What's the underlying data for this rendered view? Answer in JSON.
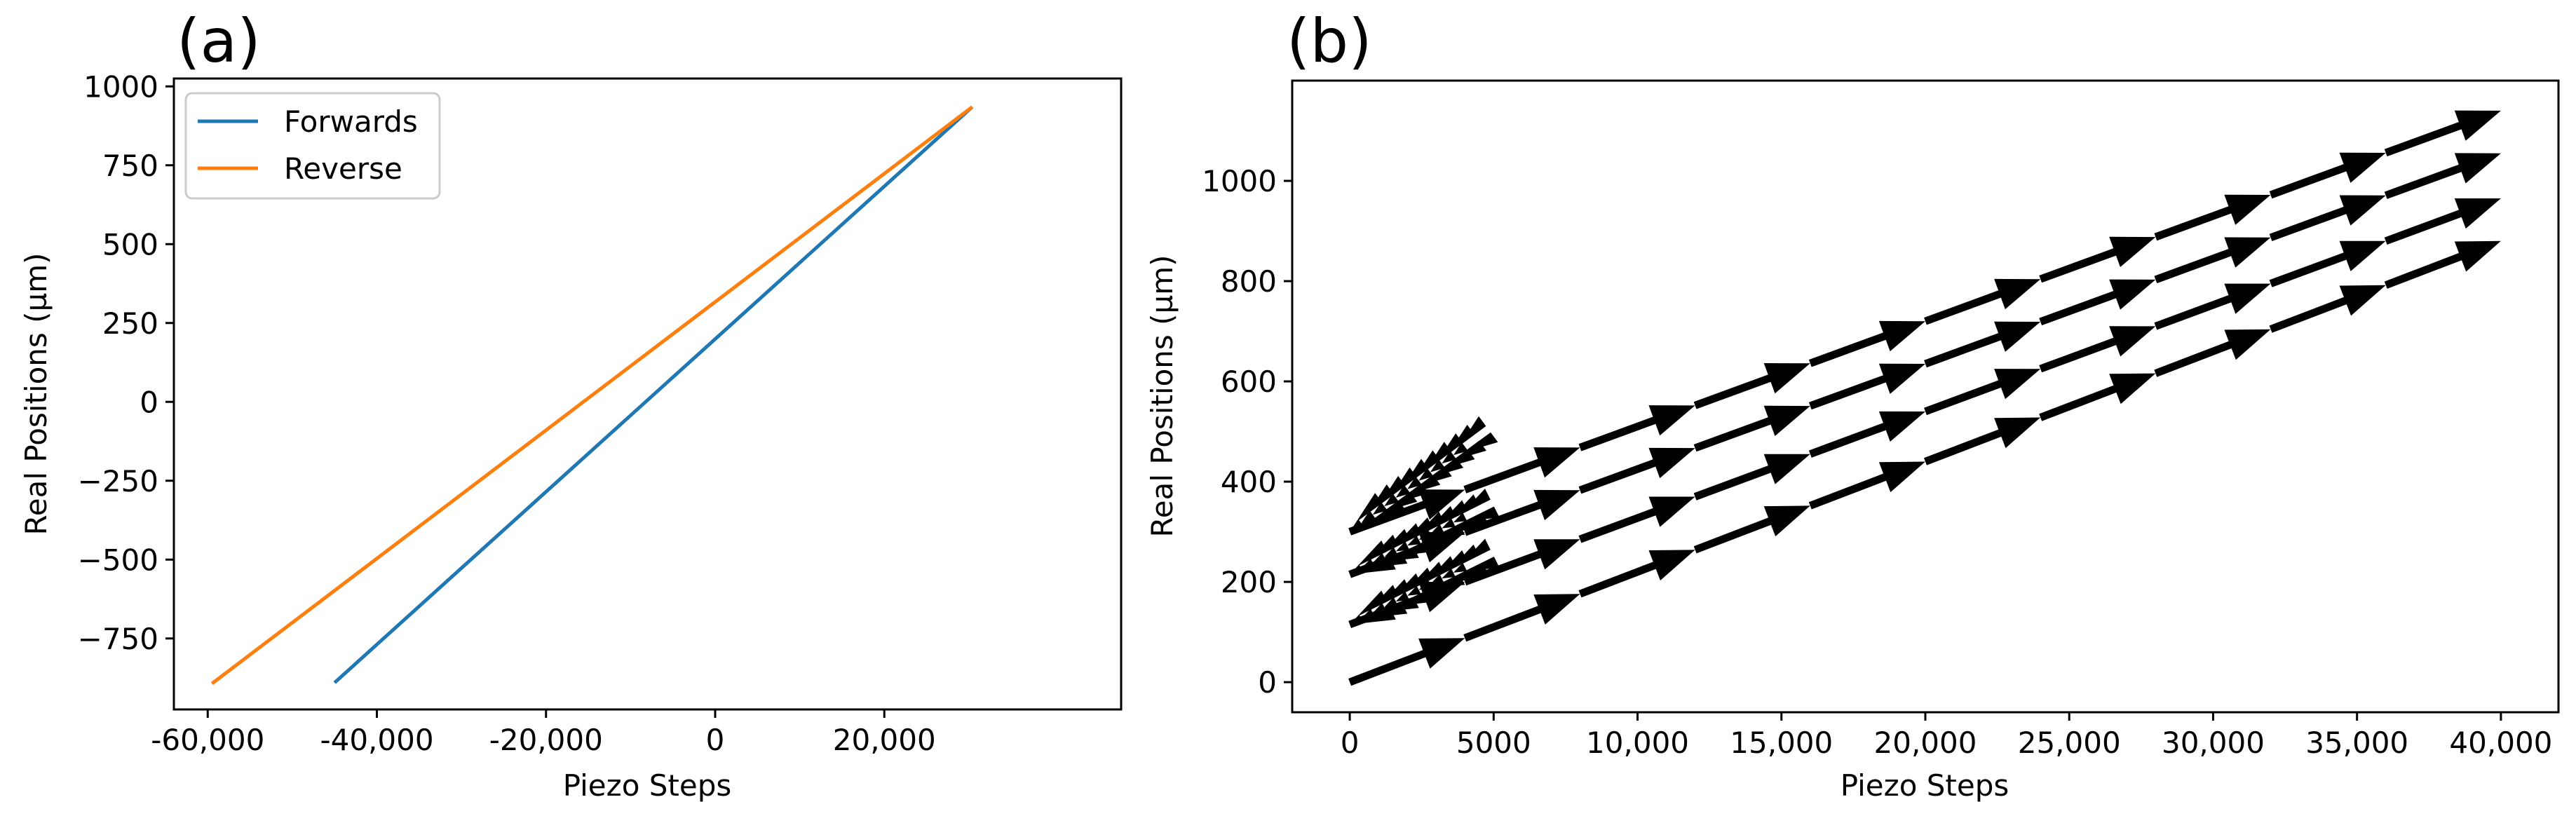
{
  "chart_data": [
    {
      "panel_label": "(a)",
      "type": "line",
      "xlabel": "Piezo Steps",
      "ylabel": "Real Positions (µm)",
      "xlim": [
        -64000,
        48000
      ],
      "ylim": [
        -975,
        1025
      ],
      "xticks": [
        -60000,
        -40000,
        -20000,
        0,
        20000
      ],
      "xtick_labels": [
        "-60,000",
        "-40,000",
        "-20,000",
        "0",
        "20,000"
      ],
      "yticks": [
        -750,
        -500,
        -250,
        0,
        250,
        500,
        750,
        1000
      ],
      "ytick_labels": [
        "−750",
        "−500",
        "−250",
        "0",
        "250",
        "500",
        "750",
        "1000"
      ],
      "legend_position": "upper-left",
      "series": [
        {
          "name": "Forwards",
          "color": "#1f77b4",
          "x": [
            -45000,
            30400
          ],
          "y": [
            -890,
            935
          ]
        },
        {
          "name": "Reverse",
          "color": "#ff7f0e",
          "x": [
            -59500,
            30400
          ],
          "y": [
            -893,
            935
          ]
        }
      ]
    },
    {
      "panel_label": "(b)",
      "type": "quiver",
      "xlabel": "Piezo Steps",
      "ylabel": "Real Positions (µm)",
      "xlim": [
        -2000,
        42000
      ],
      "ylim": [
        -60,
        1200
      ],
      "xticks": [
        0,
        5000,
        10000,
        15000,
        20000,
        25000,
        30000,
        35000,
        40000
      ],
      "xtick_labels": [
        "0",
        "5000",
        "10,000",
        "15,000",
        "20,000",
        "25,000",
        "30,000",
        "35,000",
        "40,000"
      ],
      "yticks": [
        0,
        200,
        400,
        600,
        800,
        1000
      ],
      "ytick_labels": [
        "0",
        "200",
        "400",
        "600",
        "800",
        "1000"
      ],
      "arrow_color": "#000000",
      "arrow_sets": [
        {
          "direction": "forward",
          "x0": 0,
          "x1": 40000,
          "y0": 0,
          "y1": 880,
          "segments": 10
        },
        {
          "direction": "reverse",
          "x0": 0,
          "x1": 4000,
          "y0": 115,
          "y1": 230,
          "segments": 10
        },
        {
          "direction": "forward",
          "x0": 0,
          "x1": 40000,
          "y0": 115,
          "y1": 965,
          "segments": 10
        },
        {
          "direction": "reverse",
          "x0": 0,
          "x1": 4000,
          "y0": 215,
          "y1": 330,
          "segments": 10
        },
        {
          "direction": "forward",
          "x0": 0,
          "x1": 40000,
          "y0": 215,
          "y1": 1055,
          "segments": 10
        },
        {
          "direction": "reverse",
          "x0": 0,
          "x1": 4000,
          "y0": 300,
          "y1": 470,
          "segments": 10
        },
        {
          "direction": "forward",
          "x0": 0,
          "x1": 40000,
          "y0": 300,
          "y1": 1140,
          "segments": 10
        }
      ]
    }
  ]
}
